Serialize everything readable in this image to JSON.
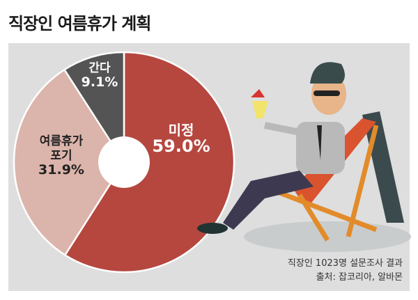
{
  "title": "직장인 여름휴가 계획",
  "chart_data": {
    "type": "pie",
    "donut": true,
    "start": "top",
    "direction": "clockwise",
    "slices": [
      {
        "label": [
          "미정"
        ],
        "value": 59.0,
        "value_label": "59.0%",
        "color": "#b5473f",
        "text_color": "#ffffff"
      },
      {
        "label": [
          "여름휴가",
          "포기"
        ],
        "value": 31.9,
        "value_label": "31.9%",
        "color": "#dbb4ab",
        "text_color": "#222222"
      },
      {
        "label": [
          "간다"
        ],
        "value": 9.1,
        "value_label": "9.1%",
        "color": "#545454",
        "text_color": "#ffffff"
      }
    ]
  },
  "notes": {
    "survey": "직장인 1023명 설문조사 결과",
    "source": "출처: 잡코리아, 알바몬"
  }
}
